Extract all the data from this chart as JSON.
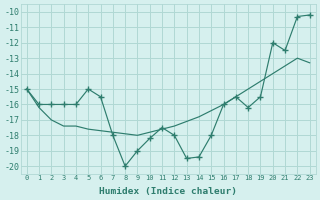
{
  "x": [
    0,
    1,
    2,
    3,
    4,
    5,
    6,
    7,
    8,
    9,
    10,
    11,
    12,
    13,
    14,
    15,
    16,
    17,
    18,
    19,
    20,
    21,
    22,
    23
  ],
  "y_wavy": [
    -15.0,
    -16.0,
    -16.0,
    -16.0,
    -16.0,
    -15.0,
    -15.5,
    -18.0,
    -20.0,
    -19.0,
    -18.2,
    -17.5,
    -18.0,
    -19.5,
    -19.4,
    -18.0,
    -16.0,
    -15.5,
    -16.2,
    -15.5,
    -12.0,
    -12.5,
    -10.3,
    -10.2
  ],
  "y_smooth": [
    -15.0,
    -16.2,
    -17.0,
    -17.4,
    -17.4,
    -17.6,
    -17.7,
    -17.8,
    -17.9,
    -18.0,
    -17.8,
    -17.6,
    -17.4,
    -17.1,
    -16.8,
    -16.4,
    -16.0,
    -15.5,
    -15.0,
    -14.5,
    -14.0,
    -13.5,
    -13.0,
    -13.3
  ],
  "line_color": "#2e7d6e",
  "bg_color": "#d6f0ee",
  "grid_color": "#b0d8d4",
  "xlabel": "Humidex (Indice chaleur)",
  "ylim": [
    -20.5,
    -9.5
  ],
  "xlim": [
    -0.5,
    23.5
  ],
  "yticks": [
    -10,
    -11,
    -12,
    -13,
    -14,
    -15,
    -16,
    -17,
    -18,
    -19,
    -20
  ],
  "xtick_labels": [
    "0",
    "1",
    "2",
    "3",
    "4",
    "5",
    "6",
    "7",
    "8",
    "9",
    "10",
    "11",
    "12",
    "13",
    "14",
    "15",
    "16",
    "17",
    "18",
    "19",
    "20",
    "21",
    "22",
    "23"
  ]
}
